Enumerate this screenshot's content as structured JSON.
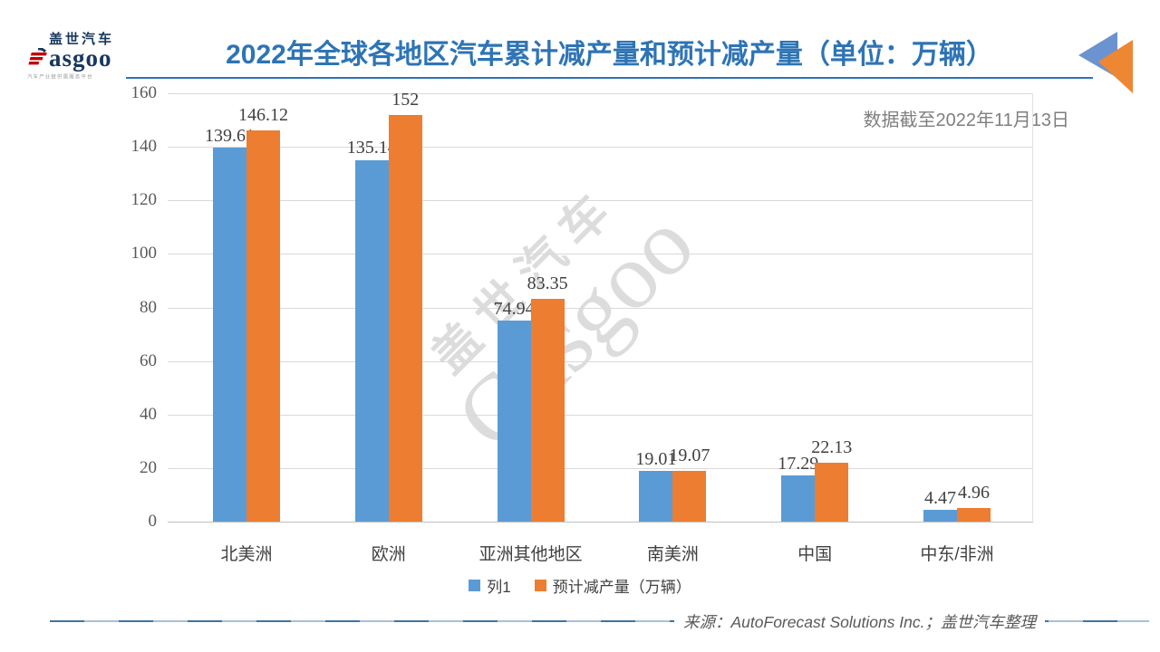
{
  "header": {
    "logo": {
      "cn": "盖世汽车",
      "en": "asgoo",
      "tagline": "汽车产业链供需服务平台"
    },
    "title": "2022年全球各地区汽车累计减产量和预计减产量（单位：万辆）",
    "note": "数据截至2022年11月13日"
  },
  "watermark": {
    "cn": "盖世汽车",
    "en": "Gasgoo"
  },
  "chart_data": {
    "type": "bar",
    "title": "2022年全球各地区汽车累计减产量和预计减产量（单位：万辆）",
    "categories": [
      "北美洲",
      "欧洲",
      "亚洲其他地区",
      "南美洲",
      "中国",
      "中东/非洲"
    ],
    "series": [
      {
        "name": "列1",
        "color": "#5B9BD5",
        "values": [
          139.61,
          135.14,
          74.94,
          19.01,
          17.29,
          4.47
        ]
      },
      {
        "name": "预计减产量（万辆）",
        "color": "#ED7D31",
        "values": [
          146.12,
          152,
          83.35,
          19.07,
          22.13,
          4.96
        ]
      }
    ],
    "xlabel": "",
    "ylabel": "",
    "ylim": [
      0,
      160
    ],
    "ytick_step": 20,
    "grid": true,
    "legend_position": "bottom"
  },
  "colors": {
    "title_blue": "#2E74B5",
    "bar_blue": "#5B9BD5",
    "bar_orange": "#ED7D31",
    "grid_gray": "#D9D9D9",
    "axis_gray": "#BFBFBF",
    "text_gray": "#595959",
    "note_gray": "#7F7F7F",
    "logo_navy": "#17375E",
    "logo_red": "#C00000"
  },
  "footer": {
    "source": "来源：AutoForecast Solutions Inc.；盖世汽车整理"
  }
}
